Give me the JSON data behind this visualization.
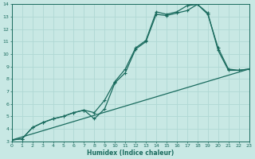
{
  "xlabel": "Humidex (Indice chaleur)",
  "xlim": [
    0,
    23
  ],
  "ylim": [
    3,
    14
  ],
  "xticks": [
    0,
    1,
    2,
    3,
    4,
    5,
    6,
    7,
    8,
    9,
    10,
    11,
    12,
    13,
    14,
    15,
    16,
    17,
    18,
    19,
    20,
    21,
    22,
    23
  ],
  "yticks": [
    3,
    4,
    5,
    6,
    7,
    8,
    9,
    10,
    11,
    12,
    13,
    14
  ],
  "bg_color": "#c8e8e4",
  "line_color": "#1a6b5e",
  "grid_color": "#b0d8d4",
  "line1_x": [
    0,
    1,
    2,
    3,
    4,
    5,
    6,
    7,
    8,
    9,
    10,
    11,
    12,
    13,
    14,
    15,
    16,
    17,
    18,
    19,
    20,
    21,
    22,
    23
  ],
  "line1_y": [
    3.1,
    3.2,
    4.1,
    4.5,
    4.8,
    5.0,
    5.3,
    5.5,
    4.8,
    5.6,
    7.7,
    8.5,
    10.4,
    11.0,
    13.2,
    13.1,
    13.3,
    13.5,
    14.0,
    13.3,
    10.3,
    8.7,
    8.7,
    8.8
  ],
  "line2_x": [
    0,
    1,
    2,
    3,
    4,
    5,
    6,
    7,
    8,
    9,
    10,
    11,
    12,
    13,
    14,
    15,
    16,
    17,
    18,
    19,
    20,
    21,
    22,
    23
  ],
  "line2_y": [
    3.1,
    3.2,
    4.1,
    4.5,
    4.8,
    5.0,
    5.3,
    5.5,
    5.3,
    6.3,
    7.8,
    8.8,
    10.5,
    11.1,
    13.4,
    13.2,
    13.4,
    13.9,
    14.0,
    13.2,
    10.5,
    8.8,
    8.7,
    8.8
  ],
  "line3_x": [
    0,
    23
  ],
  "line3_y": [
    3.1,
    8.8
  ],
  "figsize": [
    3.2,
    2.0
  ],
  "dpi": 100
}
